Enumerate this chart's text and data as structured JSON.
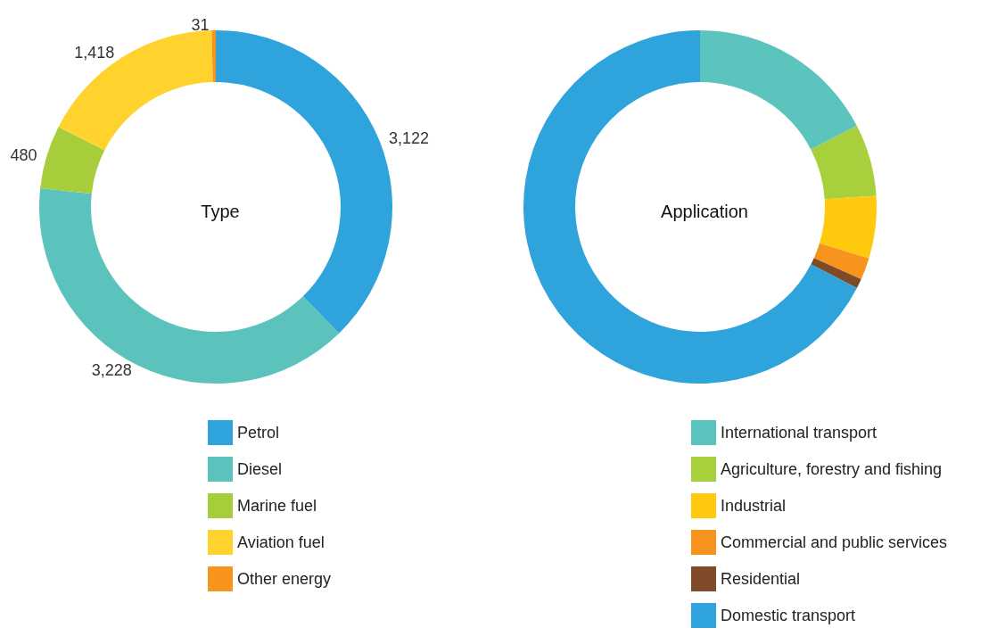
{
  "chart_data": [
    {
      "type": "donut",
      "title": "Type",
      "categories": [
        "Petrol",
        "Diesel",
        "Marine fuel",
        "Aviation fuel",
        "Other energy"
      ],
      "values": [
        3122,
        3228,
        480,
        1418,
        31
      ],
      "colors": [
        "#2fa3dc",
        "#5cc3bc",
        "#a6cd3a",
        "#ffd22e",
        "#f7941d"
      ],
      "value_labels": [
        "3,122",
        "3,228",
        "480",
        "1,418",
        "31"
      ],
      "legend": "bottom"
    },
    {
      "type": "donut",
      "title": "Application",
      "categories": [
        "International transport",
        "Agriculture, forestry and fishing",
        "Industrial",
        "Commercial and public services",
        "Residential",
        "Domestic transport"
      ],
      "values": [
        17.4,
        6.6,
        5.7,
        2.0,
        0.9,
        67.4
      ],
      "colors": [
        "#5bc4bd",
        "#a8cf3c",
        "#ffc90e",
        "#f7941d",
        "#7f4a28",
        "#2fa3dc"
      ],
      "legend": "bottom"
    }
  ]
}
